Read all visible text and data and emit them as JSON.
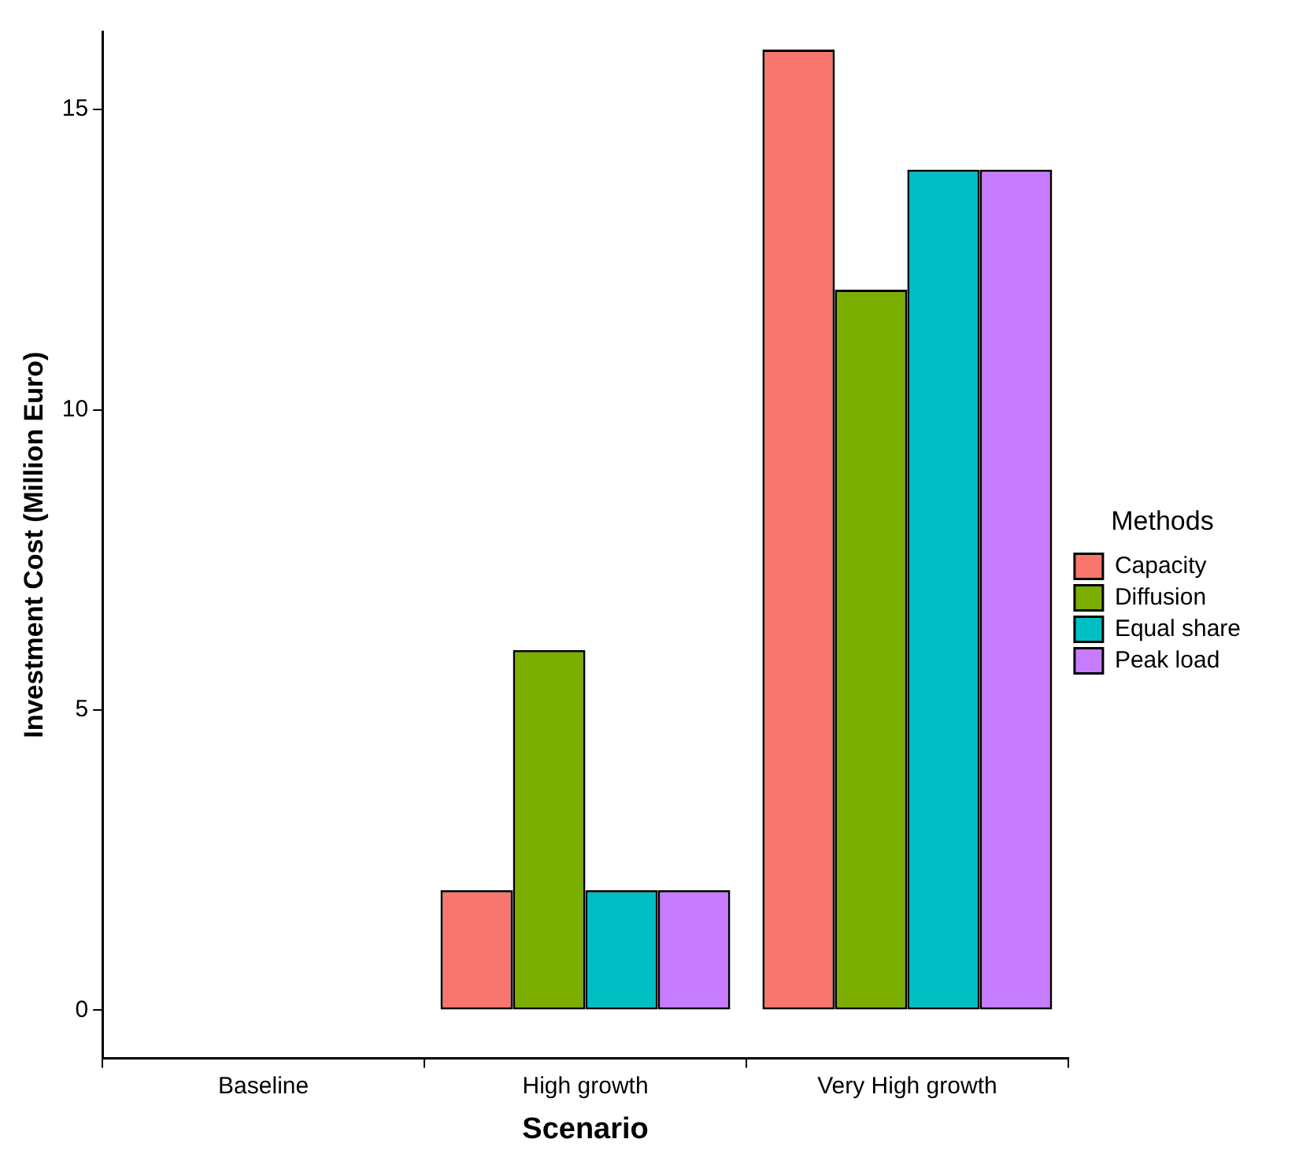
{
  "chart_data": {
    "type": "bar",
    "xlabel": "Scenario",
    "ylabel": "Investment Cost (Million Euro)",
    "legend_title": "Methods",
    "categories": [
      "Baseline",
      "High growth",
      "Very High growth"
    ],
    "series": [
      {
        "name": "Capacity",
        "color": "#f8766d",
        "values": [
          0,
          2,
          16
        ]
      },
      {
        "name": "Diffusion",
        "color": "#7cae00",
        "values": [
          0,
          6,
          12
        ]
      },
      {
        "name": "Equal share",
        "color": "#00bfc4",
        "values": [
          0,
          2,
          14
        ]
      },
      {
        "name": "Peak load",
        "color": "#c77cff",
        "values": [
          0,
          2,
          14
        ]
      }
    ],
    "ylim": [
      -0.8,
      16.3
    ],
    "yticks": [
      0,
      5,
      10,
      15
    ],
    "grid": false,
    "legend": "right"
  }
}
